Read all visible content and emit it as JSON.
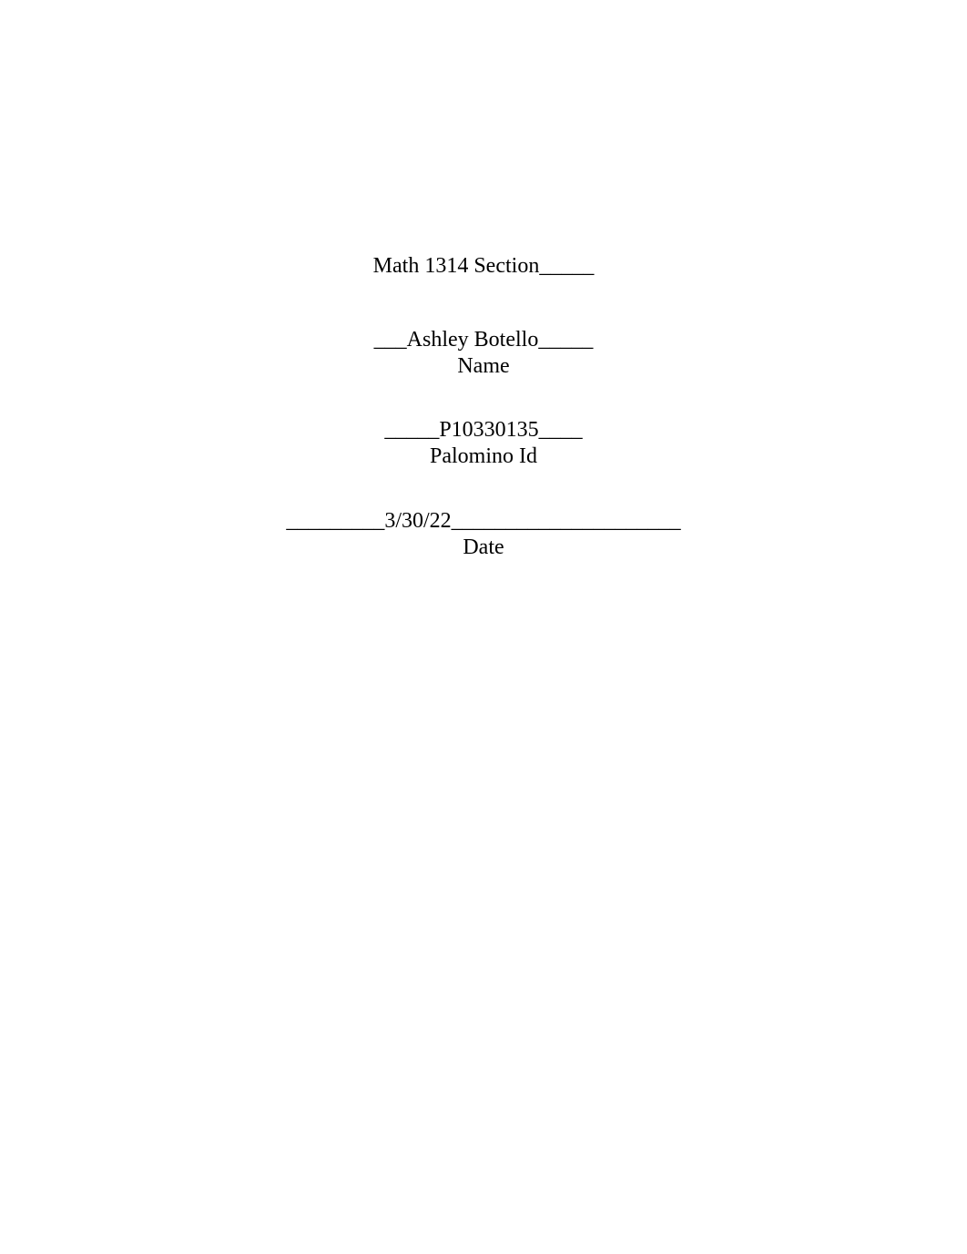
{
  "document": {
    "background_color": "#ffffff",
    "text_color": "#000000",
    "font_family": "Times New Roman",
    "font_size_pt": 18
  },
  "course": {
    "line": "Math 1314 Section_____"
  },
  "name": {
    "fill_line": "___Ashley Botello_____",
    "label": "Name"
  },
  "id": {
    "fill_line": "_____P10330135____",
    "label": "Palomino Id"
  },
  "date": {
    "fill_line": "_________3/30/22_____________________",
    "label": "Date"
  }
}
